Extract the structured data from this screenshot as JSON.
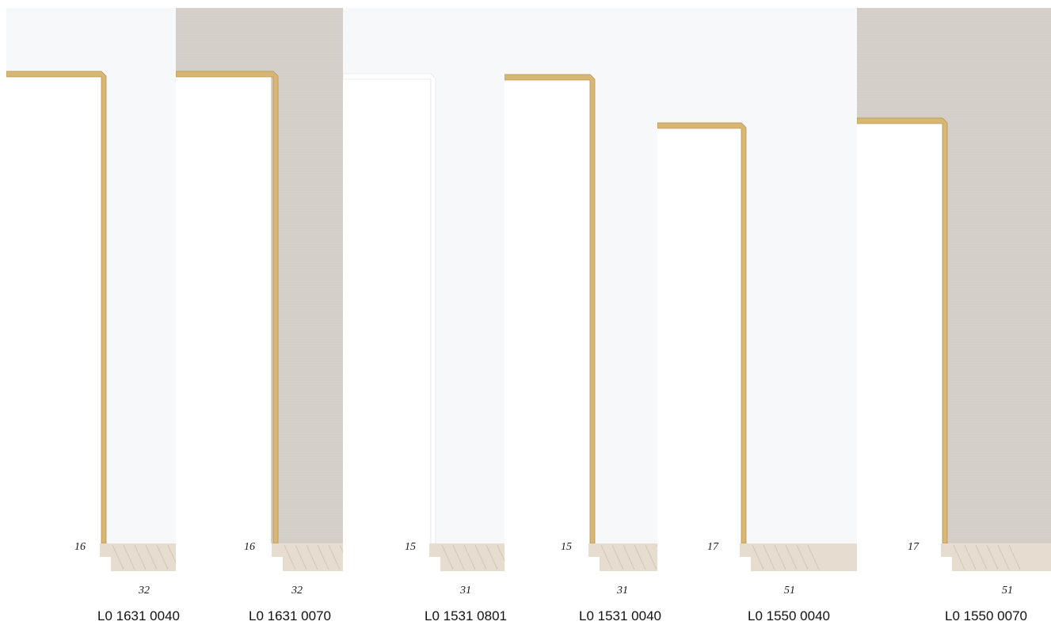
{
  "samples": [
    {
      "code": "L0 1631 0040",
      "rebate": "16",
      "width": "32",
      "finish": "white",
      "lip": "gold"
    },
    {
      "code": "L0 1631 0070",
      "rebate": "16",
      "width": "32",
      "finish": "linen",
      "lip": "gold"
    },
    {
      "code": "L0 1531 0801",
      "rebate": "15",
      "width": "31",
      "finish": "white",
      "lip": "white"
    },
    {
      "code": "L0 1531 0040",
      "rebate": "15",
      "width": "31",
      "finish": "white",
      "lip": "gold"
    },
    {
      "code": "L0 1550 0040",
      "rebate": "17",
      "width": "51",
      "finish": "white",
      "lip": "gold"
    },
    {
      "code": "L0 1550 0070",
      "rebate": "17",
      "width": "51",
      "finish": "linen",
      "lip": "gold"
    }
  ],
  "colors": {
    "white": "#f7f8fa",
    "linen": "#d6d0cb",
    "gold": "#d8b673",
    "gold_dark": "#b89550",
    "wood": "#e6ddd0"
  }
}
